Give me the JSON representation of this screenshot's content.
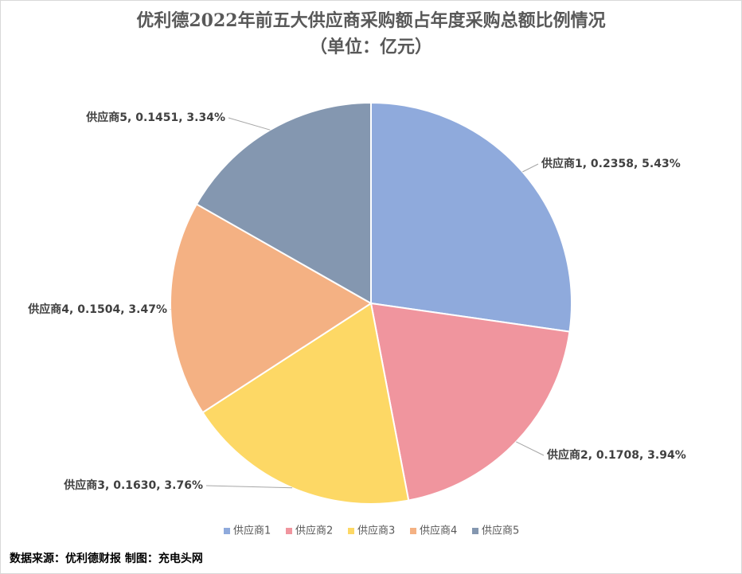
{
  "chart_data": {
    "type": "pie",
    "title": "优利德2022年前五大供应商采购额占年度采购总额比例情况",
    "subtitle": "（单位：亿元）",
    "categories": [
      "供应商1",
      "供应商2",
      "供应商3",
      "供应商4",
      "供应商5"
    ],
    "values": [
      0.2358,
      0.1708,
      0.163,
      0.1504,
      0.1451
    ],
    "value_labels": [
      "供应商1, 0.2358, 5.43%",
      "供应商2, 0.1708, 3.94%",
      "供应商3, 0.1630, 3.76%",
      "供应商4, 0.1504, 3.47%",
      "供应商5, 0.1451, 3.34%"
    ],
    "colors": [
      "#8FAADC",
      "#F0959E",
      "#FDD865",
      "#F4B183",
      "#8497B0"
    ],
    "legend": "bottom",
    "source": "数据来源：优利德财报  制图：充电头网"
  }
}
